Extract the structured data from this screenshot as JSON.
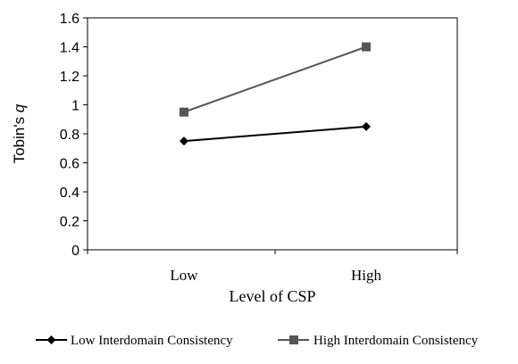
{
  "chart_data": {
    "type": "line",
    "categories": [
      "Low",
      "High"
    ],
    "series": [
      {
        "name": "Low Interdomain Consistency",
        "values": [
          0.75,
          0.85
        ],
        "color": "#000000",
        "marker": "diamond"
      },
      {
        "name": "High Interdomain Consistency",
        "values": [
          0.95,
          1.4
        ],
        "color": "#555555",
        "marker": "square"
      }
    ],
    "xlabel": "Level of CSP",
    "ylabel": {
      "prefix": "Tobin's ",
      "italic": "q"
    },
    "ylim": [
      0,
      1.6
    ],
    "yticks": [
      "0",
      "0.2",
      "0.4",
      "0.6",
      "0.8",
      "1",
      "1.2",
      "1.4",
      "1.6"
    ],
    "grid": false,
    "legend": "bottom"
  }
}
